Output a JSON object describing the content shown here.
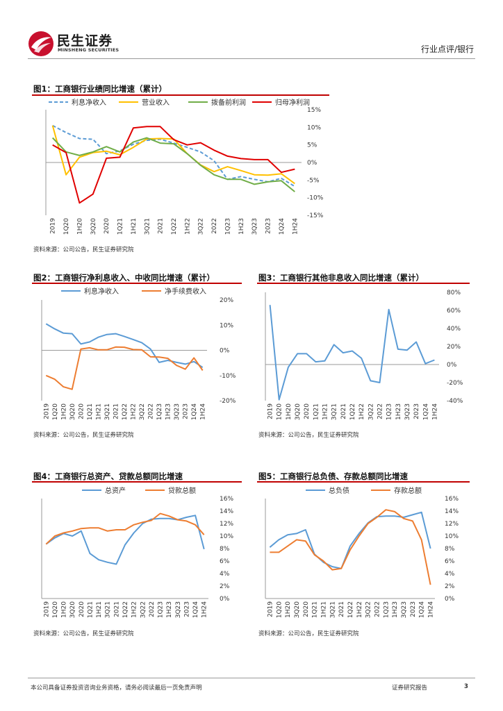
{
  "header": {
    "brand_cn": "民生证券",
    "brand_en": "MINSHENG SECURITIES",
    "category": "行业点评/银行",
    "logo_color": "#c8102e"
  },
  "figures": [
    {
      "title": "图1：工商银行业绩同比增速（累计）",
      "source": "资料来源：公司公告，民生证券研究院"
    },
    {
      "title": "图2：工商银行净利息收入、中收同比增速（累计）",
      "source": "资料来源：公司公告，民生证券研究院"
    },
    {
      "title": "图3：工商银行其他非息收入同比增速（累计）",
      "source": "资料来源：公司公告，民生证券研究院"
    },
    {
      "title": "图4：工商银行总资产、贷款总额同比增速",
      "source": "资料来源：公司公告，民生证券研究院"
    },
    {
      "title": "图5：工商银行总负债、存款总额同比增速",
      "source": "资料来源：公司公告，民生证券研究院"
    }
  ],
  "footer": {
    "disclaimer": "本公司具备证券投资咨询业务资格，请务必阅读最后一页免责声明",
    "label": "证券研究报告",
    "page": "3"
  },
  "chart_data": [
    {
      "id": "fig1",
      "type": "line",
      "categories": [
        "2019",
        "1Q20",
        "1H20",
        "3Q20",
        "2020",
        "1Q21",
        "1H21",
        "3Q21",
        "2021",
        "1Q22",
        "1H22",
        "3Q22",
        "2022",
        "1Q23",
        "1H23",
        "3Q23",
        "2023",
        "1Q24",
        "1H24"
      ],
      "yticks": [
        15,
        10,
        5,
        0,
        -5,
        -10,
        -15
      ],
      "ytick_labels": [
        "15%",
        "10%",
        "5%",
        "0%",
        "-5%",
        "-10%",
        "-15%"
      ],
      "ylim": [
        -15,
        15
      ],
      "series": [
        {
          "name": "利息净收入",
          "color": "#5b9bd5",
          "dashed": true,
          "values": [
            10.5,
            8.5,
            6.8,
            6.6,
            2.5,
            3.3,
            5.2,
            6.3,
            6.6,
            5.5,
            4.3,
            3.0,
            0.5,
            -4.8,
            -4.0,
            -4.8,
            -5.5,
            -4.5,
            -6.8
          ]
        },
        {
          "name": "营业收入",
          "color": "#ffc000",
          "dashed": false,
          "values": [
            10.5,
            -3.5,
            1.5,
            2.8,
            3.2,
            2.2,
            4.3,
            6.7,
            6.8,
            6.7,
            2.5,
            -0.7,
            -2.6,
            -1.2,
            -2.3,
            -3.5,
            -3.6,
            -3.2,
            -6.0
          ]
        },
        {
          "name": "拨备前利润",
          "color": "#70ad47",
          "dashed": false,
          "values": [
            7.0,
            3.0,
            2.0,
            3.0,
            4.5,
            3.0,
            5.8,
            7.0,
            5.5,
            5.3,
            2.5,
            -0.8,
            -3.5,
            -4.8,
            -4.8,
            -6.2,
            -5.5,
            -5.2,
            -8.3
          ]
        },
        {
          "name": "归母净利润",
          "color": "#e00000",
          "dashed": false,
          "values": [
            5.0,
            2.8,
            -11.5,
            -9.0,
            1.2,
            1.5,
            9.8,
            10.2,
            10.2,
            6.5,
            5.0,
            5.6,
            3.5,
            1.8,
            1.1,
            0.8,
            0.8,
            -2.8,
            -1.9
          ]
        }
      ]
    },
    {
      "id": "fig2",
      "type": "line",
      "categories": [
        "2019",
        "1Q20",
        "1H20",
        "3Q20",
        "2020",
        "1Q21",
        "1H21",
        "3Q21",
        "2021",
        "1Q22",
        "1H22",
        "3Q22",
        "2022",
        "1Q23",
        "1H23",
        "3Q23",
        "2023",
        "1Q24",
        "1H24"
      ],
      "yticks": [
        20,
        10,
        0,
        -10,
        -20
      ],
      "ytick_labels": [
        "20%",
        "10%",
        "0%",
        "-10%",
        "-20%"
      ],
      "ylim": [
        -20,
        20
      ],
      "series": [
        {
          "name": "利息净收入",
          "color": "#5b9bd5",
          "dashed": false,
          "values": [
            10.5,
            8.5,
            6.8,
            6.6,
            2.5,
            3.3,
            5.2,
            6.3,
            6.6,
            5.5,
            4.3,
            3.0,
            0.5,
            -4.8,
            -4.0,
            -4.8,
            -5.5,
            -4.5,
            -6.8
          ]
        },
        {
          "name": "净手续费收入",
          "color": "#ed7d31",
          "dashed": false,
          "values": [
            -10.0,
            -11.5,
            -14.5,
            -15.5,
            0.5,
            1.0,
            0.2,
            0.2,
            1.3,
            1.2,
            0.3,
            0.2,
            -2.6,
            -2.7,
            -3.2,
            -6.0,
            -7.5,
            -3.0,
            -8.0
          ]
        }
      ]
    },
    {
      "id": "fig3",
      "type": "line",
      "categories": [
        "2019",
        "1Q20",
        "1H20",
        "3Q20",
        "2020",
        "1Q21",
        "1H21",
        "3Q21",
        "2021",
        "1Q22",
        "1H22",
        "3Q22",
        "2022",
        "1Q23",
        "1H23",
        "3Q23",
        "2023",
        "1Q24",
        "1H24"
      ],
      "yticks": [
        80,
        60,
        40,
        20,
        0,
        -20,
        -40
      ],
      "ytick_labels": [
        "80%",
        "60%",
        "40%",
        "20%",
        "0%",
        "-20%",
        "-40%"
      ],
      "ylim": [
        -40,
        80
      ],
      "series": [
        {
          "name": "其他非息收入",
          "color": "#5b9bd5",
          "dashed": false,
          "values": [
            66,
            -39,
            -3,
            12,
            12,
            3,
            4,
            22,
            13,
            15,
            7,
            -18,
            -20,
            61,
            17,
            16,
            25,
            1,
            5
          ]
        }
      ]
    },
    {
      "id": "fig4",
      "type": "line",
      "categories": [
        "2019",
        "1Q20",
        "1H20",
        "3Q20",
        "2020",
        "1Q21",
        "1H21",
        "3Q21",
        "2021",
        "1Q22",
        "1H22",
        "3Q22",
        "2022",
        "1Q23",
        "1H23",
        "3Q23",
        "2023",
        "1Q24",
        "1H24"
      ],
      "yticks": [
        16,
        14,
        12,
        10,
        8,
        6,
        4,
        2,
        0
      ],
      "ytick_labels": [
        "16%",
        "14%",
        "12%",
        "10%",
        "8%",
        "6%",
        "4%",
        "2%",
        "0%"
      ],
      "ylim": [
        0,
        16
      ],
      "series": [
        {
          "name": "总资产",
          "color": "#5b9bd5",
          "dashed": false,
          "values": [
            8.7,
            9.7,
            10.4,
            10.0,
            10.8,
            7.2,
            6.2,
            5.8,
            5.5,
            8.6,
            10.5,
            12.0,
            12.7,
            12.8,
            12.8,
            12.6,
            13.0,
            13.3,
            7.9
          ]
        },
        {
          "name": "贷款总额",
          "color": "#ed7d31",
          "dashed": false,
          "values": [
            8.7,
            10.0,
            10.5,
            10.8,
            11.2,
            11.3,
            11.3,
            10.8,
            11.0,
            11.0,
            11.8,
            12.2,
            12.5,
            13.6,
            13.2,
            12.6,
            12.4,
            11.8,
            10.2
          ]
        }
      ]
    },
    {
      "id": "fig5",
      "type": "line",
      "categories": [
        "2019",
        "1Q20",
        "1H20",
        "3Q20",
        "2020",
        "1Q21",
        "1H21",
        "3Q21",
        "2021",
        "1Q22",
        "1H22",
        "3Q22",
        "2022",
        "1Q23",
        "1H23",
        "3Q23",
        "2023",
        "1Q24",
        "1H24"
      ],
      "yticks": [
        16,
        14,
        12,
        10,
        8,
        6,
        4,
        2,
        0
      ],
      "ytick_labels": [
        "16%",
        "14%",
        "12%",
        "10%",
        "8%",
        "6%",
        "4%",
        "2%",
        "0%"
      ],
      "ylim": [
        0,
        16
      ],
      "series": [
        {
          "name": "总负债",
          "color": "#5b9bd5",
          "dashed": false,
          "values": [
            8.2,
            9.4,
            10.2,
            10.4,
            11.0,
            7.1,
            5.8,
            5.1,
            4.8,
            8.4,
            10.4,
            12.1,
            13.1,
            13.2,
            13.2,
            13.0,
            13.4,
            13.8,
            8.0
          ]
        },
        {
          "name": "存款总额",
          "color": "#ed7d31",
          "dashed": false,
          "values": [
            7.4,
            7.4,
            8.4,
            9.4,
            9.2,
            7.0,
            6.0,
            4.6,
            4.8,
            7.8,
            10.0,
            12.0,
            13.0,
            14.2,
            13.9,
            12.8,
            12.4,
            9.4,
            2.2
          ]
        }
      ]
    }
  ]
}
